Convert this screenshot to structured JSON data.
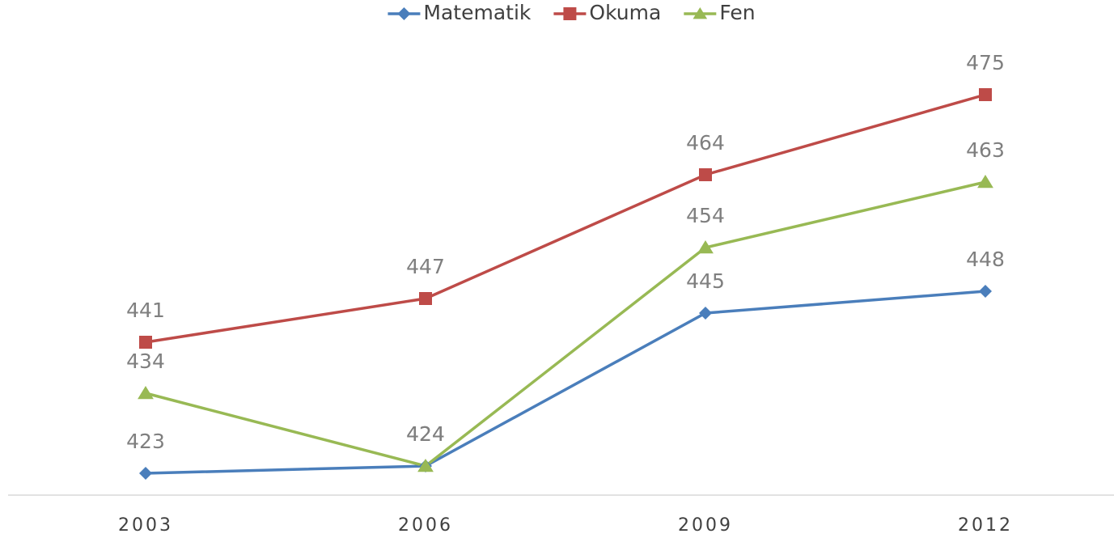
{
  "chart_data": {
    "type": "line",
    "categories": [
      "2003",
      "2006",
      "2009",
      "2012"
    ],
    "series": [
      {
        "name": "Matematik",
        "color": "#4a7ebb",
        "marker": "diamond",
        "values": [
          423,
          424,
          445,
          448
        ]
      },
      {
        "name": "Okuma",
        "color": "#be4b48",
        "marker": "square",
        "values": [
          441,
          447,
          464,
          475
        ]
      },
      {
        "name": "Fen",
        "color": "#98b954",
        "marker": "triangle",
        "values": [
          434,
          424,
          454,
          463
        ]
      }
    ],
    "ylim": [
      420,
      480
    ]
  }
}
